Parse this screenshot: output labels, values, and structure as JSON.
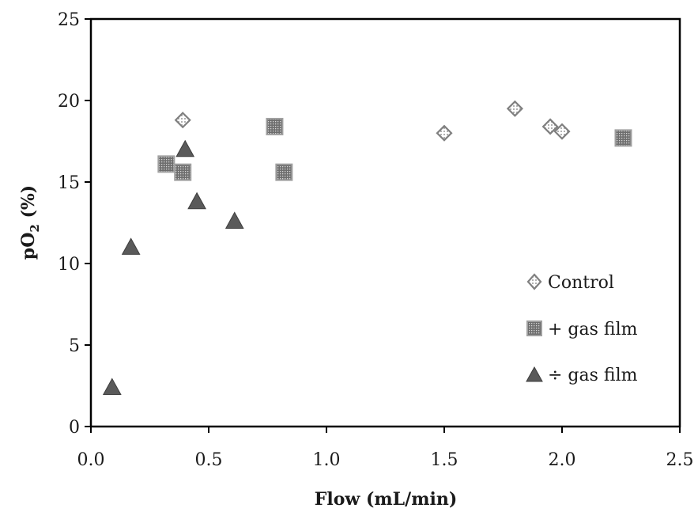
{
  "chart_data": {
    "type": "scatter",
    "title": "",
    "xlabel": "Flow (mL/min)",
    "ylabel_main": "pO",
    "ylabel_sub": "2",
    "ylabel_tail": " (%)",
    "xlim": [
      0.0,
      2.5
    ],
    "ylim": [
      0,
      25
    ],
    "xticks": [
      "0.0",
      "0.5",
      "1.0",
      "1.5",
      "2.0",
      "2.5"
    ],
    "yticks": [
      "0",
      "5",
      "10",
      "15",
      "20",
      "25"
    ],
    "grid": false,
    "legend_position": "bottom-right",
    "series": [
      {
        "name": "Control",
        "marker": "diamond",
        "color": "#8a8a8a",
        "points": [
          [
            0.39,
            18.8
          ],
          [
            1.5,
            18.0
          ],
          [
            1.8,
            19.5
          ],
          [
            1.95,
            18.4
          ],
          [
            2.0,
            18.1
          ]
        ]
      },
      {
        "name": "+ gas film",
        "marker": "square",
        "color": "#8c8c8c",
        "points": [
          [
            0.32,
            16.1
          ],
          [
            0.39,
            15.6
          ],
          [
            0.78,
            18.4
          ],
          [
            0.82,
            15.6
          ],
          [
            2.26,
            17.7
          ]
        ]
      },
      {
        "name": "÷ gas film",
        "marker": "triangle",
        "color": "#5a5a5a",
        "points": [
          [
            0.09,
            2.4
          ],
          [
            0.17,
            11.0
          ],
          [
            0.4,
            17.0
          ],
          [
            0.45,
            13.8
          ],
          [
            0.61,
            12.6
          ]
        ]
      }
    ]
  }
}
